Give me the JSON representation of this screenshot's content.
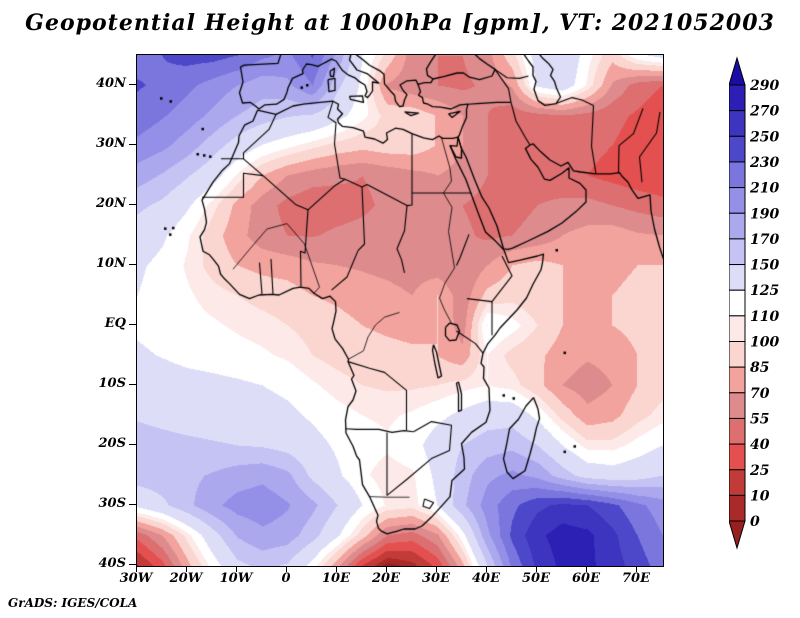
{
  "title": "Geopotential Height at 1000hPa [gpm], VT: 2021052003",
  "attribution": "GrADS: IGES/COLA",
  "map": {
    "lat_ticks": [
      {
        "label": "40N",
        "lat": 40
      },
      {
        "label": "30N",
        "lat": 30
      },
      {
        "label": "20N",
        "lat": 20
      },
      {
        "label": "10N",
        "lat": 10
      },
      {
        "label": "EQ",
        "lat": 0
      },
      {
        "label": "10S",
        "lat": -10
      },
      {
        "label": "20S",
        "lat": -20
      },
      {
        "label": "30S",
        "lat": -30
      },
      {
        "label": "40S",
        "lat": -40
      }
    ],
    "lon_ticks": [
      {
        "label": "30W",
        "lon": -30
      },
      {
        "label": "20W",
        "lon": -20
      },
      {
        "label": "10W",
        "lon": -10
      },
      {
        "label": "0",
        "lon": 0
      },
      {
        "label": "10E",
        "lon": 10
      },
      {
        "label": "20E",
        "lon": 20
      },
      {
        "label": "30E",
        "lon": 30
      },
      {
        "label": "40E",
        "lon": 40
      },
      {
        "label": "50E",
        "lon": 50
      },
      {
        "label": "60E",
        "lon": 60
      },
      {
        "label": "70E",
        "lon": 70
      }
    ]
  },
  "colorbar": {
    "levels": [
      0,
      10,
      25,
      40,
      55,
      70,
      85,
      100,
      110,
      125,
      150,
      170,
      190,
      210,
      230,
      250,
      270,
      290
    ],
    "colors": [
      "#981f1f",
      "#a92a28",
      "#c13b39",
      "#e4504f",
      "#dd6f70",
      "#dd8b8d",
      "#f2a39e",
      "#fbd6d1",
      "#fdeae8",
      "#ffffff",
      "#deddf8",
      "#c5c3f3",
      "#aca8ee",
      "#9490e7",
      "#7b76dd",
      "#4d48c9",
      "#3d35c0",
      "#2c20b4",
      "#1c0ca6"
    ]
  },
  "chart_data": {
    "type": "heatmap",
    "title": "Geopotential Height at 1000hPa [gpm], VT: 2021052003",
    "variable": "Geopotential Height",
    "pressure_level": "1000hPa",
    "units": "gpm",
    "valid_time": "2021052003",
    "extent": {
      "lon_min": -30,
      "lon_max": 75,
      "lat_min": -40,
      "lat_max": 45
    },
    "levels": [
      0,
      10,
      25,
      40,
      55,
      70,
      85,
      100,
      110,
      125,
      150,
      170,
      190,
      210,
      230,
      250,
      270,
      290
    ],
    "colors": [
      "#981f1f",
      "#a92a28",
      "#c13b39",
      "#e4504f",
      "#dd6f70",
      "#dd8b8d",
      "#f2a39e",
      "#fbd6d1",
      "#fdeae8",
      "#ffffff",
      "#deddf8",
      "#c5c3f3",
      "#aca8ee",
      "#9490e7",
      "#7b76dd",
      "#4d48c9",
      "#3d35c0",
      "#2c20b4",
      "#1c0ca6"
    ],
    "legend_position": "right",
    "grid": {
      "lons": [
        -30,
        -25,
        -20,
        -15,
        -10,
        -5,
        0,
        5,
        10,
        15,
        20,
        25,
        30,
        35,
        40,
        45,
        50,
        55,
        60,
        65,
        70,
        75
      ],
      "lats": [
        45,
        40,
        35,
        30,
        25,
        20,
        15,
        10,
        5,
        0,
        -5,
        -10,
        -15,
        -20,
        -25,
        -30,
        -35,
        -40
      ],
      "values": [
        [
          222,
          230,
          238,
          238,
          230,
          214,
          205,
          232,
          185,
          125,
          95,
          62,
          55,
          55,
          65,
          95,
          135,
          148,
          115,
          90,
          120,
          132
        ],
        [
          232,
          226,
          215,
          202,
          190,
          178,
          185,
          210,
          155,
          120,
          68,
          60,
          55,
          52,
          58,
          72,
          128,
          140,
          108,
          68,
          48,
          40
        ],
        [
          222,
          212,
          200,
          186,
          170,
          160,
          152,
          148,
          132,
          114,
          95,
          94,
          84,
          70,
          55,
          46,
          50,
          55,
          50,
          44,
          38,
          30
        ],
        [
          205,
          195,
          180,
          160,
          140,
          124,
          114,
          104,
          95,
          90,
          94,
          94,
          84,
          70,
          55,
          45,
          40,
          44,
          44,
          40,
          34,
          28
        ],
        [
          180,
          168,
          152,
          135,
          108,
          85,
          70,
          62,
          58,
          55,
          60,
          65,
          70,
          65,
          55,
          50,
          45,
          40,
          40,
          35,
          30,
          28
        ],
        [
          155,
          145,
          128,
          105,
          80,
          62,
          50,
          44,
          48,
          52,
          58,
          62,
          60,
          55,
          50,
          50,
          55,
          60,
          60,
          55,
          50,
          45
        ],
        [
          138,
          128,
          112,
          92,
          75,
          62,
          55,
          54,
          58,
          60,
          62,
          62,
          62,
          58,
          52,
          55,
          60,
          70,
          75,
          78,
          72,
          70
        ],
        [
          128,
          120,
          108,
          95,
          85,
          80,
          78,
          72,
          70,
          68,
          65,
          62,
          60,
          55,
          70,
          85,
          90,
          85,
          80,
          82,
          85,
          85
        ],
        [
          125,
          118,
          112,
          105,
          100,
          95,
          92,
          85,
          82,
          78,
          75,
          70,
          85,
          60,
          90,
          95,
          90,
          85,
          82,
          85,
          88,
          90
        ],
        [
          122,
          118,
          115,
          112,
          108,
          105,
          100,
          95,
          90,
          85,
          82,
          80,
          85,
          62,
          125,
          115,
          100,
          85,
          82,
          85,
          90,
          95
        ],
        [
          128,
          124,
          120,
          118,
          115,
          112,
          108,
          100,
          95,
          92,
          90,
          88,
          85,
          75,
          110,
          95,
          88,
          78,
          72,
          75,
          85,
          95
        ],
        [
          138,
          135,
          132,
          130,
          128,
          125,
          120,
          112,
          105,
          100,
          98,
          98,
          100,
          105,
          110,
          105,
          90,
          70,
          62,
          70,
          85,
          95
        ],
        [
          148,
          145,
          142,
          140,
          138,
          135,
          130,
          122,
          115,
          110,
          108,
          112,
          120,
          130,
          140,
          140,
          120,
          95,
          75,
          80,
          95,
          105
        ],
        [
          158,
          156,
          154,
          152,
          150,
          148,
          142,
          132,
          122,
          115,
          112,
          118,
          135,
          150,
          160,
          165,
          150,
          125,
          105,
          105,
          115,
          125
        ],
        [
          160,
          162,
          165,
          172,
          180,
          185,
          175,
          145,
          128,
          112,
          105,
          108,
          130,
          160,
          185,
          195,
          185,
          160,
          140,
          135,
          140,
          150
        ],
        [
          130,
          145,
          165,
          185,
          198,
          202,
          192,
          175,
          150,
          125,
          108,
          105,
          125,
          165,
          200,
          225,
          245,
          255,
          250,
          235,
          215,
          200
        ],
        [
          45,
          70,
          105,
          140,
          172,
          185,
          180,
          158,
          128,
          92,
          55,
          48,
          68,
          118,
          185,
          235,
          265,
          280,
          275,
          255,
          230,
          210
        ],
        [
          8,
          35,
          80,
          115,
          145,
          155,
          148,
          118,
          75,
          25,
          -5,
          5,
          30,
          80,
          150,
          215,
          255,
          275,
          275,
          260,
          240,
          220
        ]
      ]
    }
  }
}
